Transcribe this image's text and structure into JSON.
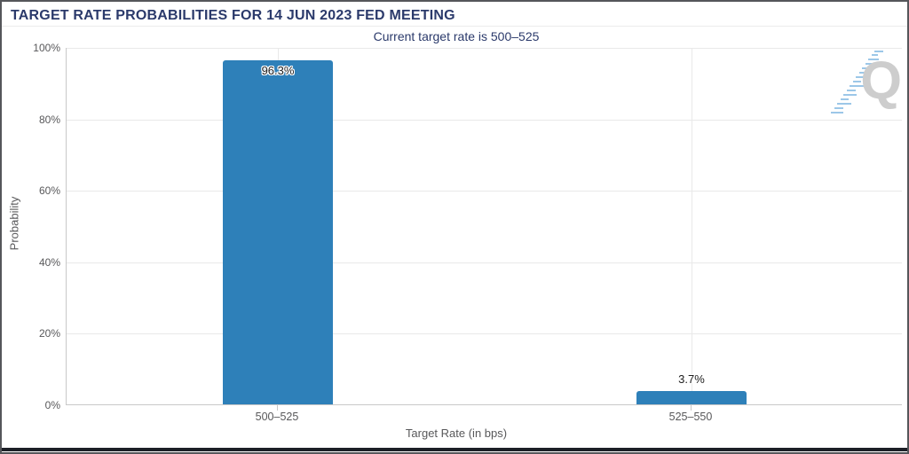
{
  "header": {
    "title": "TARGET RATE PROBABILITIES FOR 14 JUN 2023 FED MEETING"
  },
  "chart_data": {
    "type": "bar",
    "title": "TARGET RATE PROBABILITIES FOR 14 JUN 2023 FED MEETING",
    "subtitle": "Current target rate is 500–525",
    "categories": [
      "500–525",
      "525–550"
    ],
    "values": [
      96.3,
      3.7
    ],
    "value_labels": [
      "96.3%",
      "3.7%"
    ],
    "xlabel": "Target Rate (in bps)",
    "ylabel": "Probability",
    "ylim": [
      0,
      100
    ],
    "ytick_labels": [
      "100%",
      "80%",
      "60%",
      "40%",
      "20%",
      "0%"
    ],
    "grid": true,
    "legend": "none",
    "bar_color": "#2e80b9",
    "title_color": "#2b3a6b",
    "axis_text_color": "#58585a"
  },
  "logo": {
    "letter": "Q",
    "accent_color": "#9cc7e8"
  }
}
